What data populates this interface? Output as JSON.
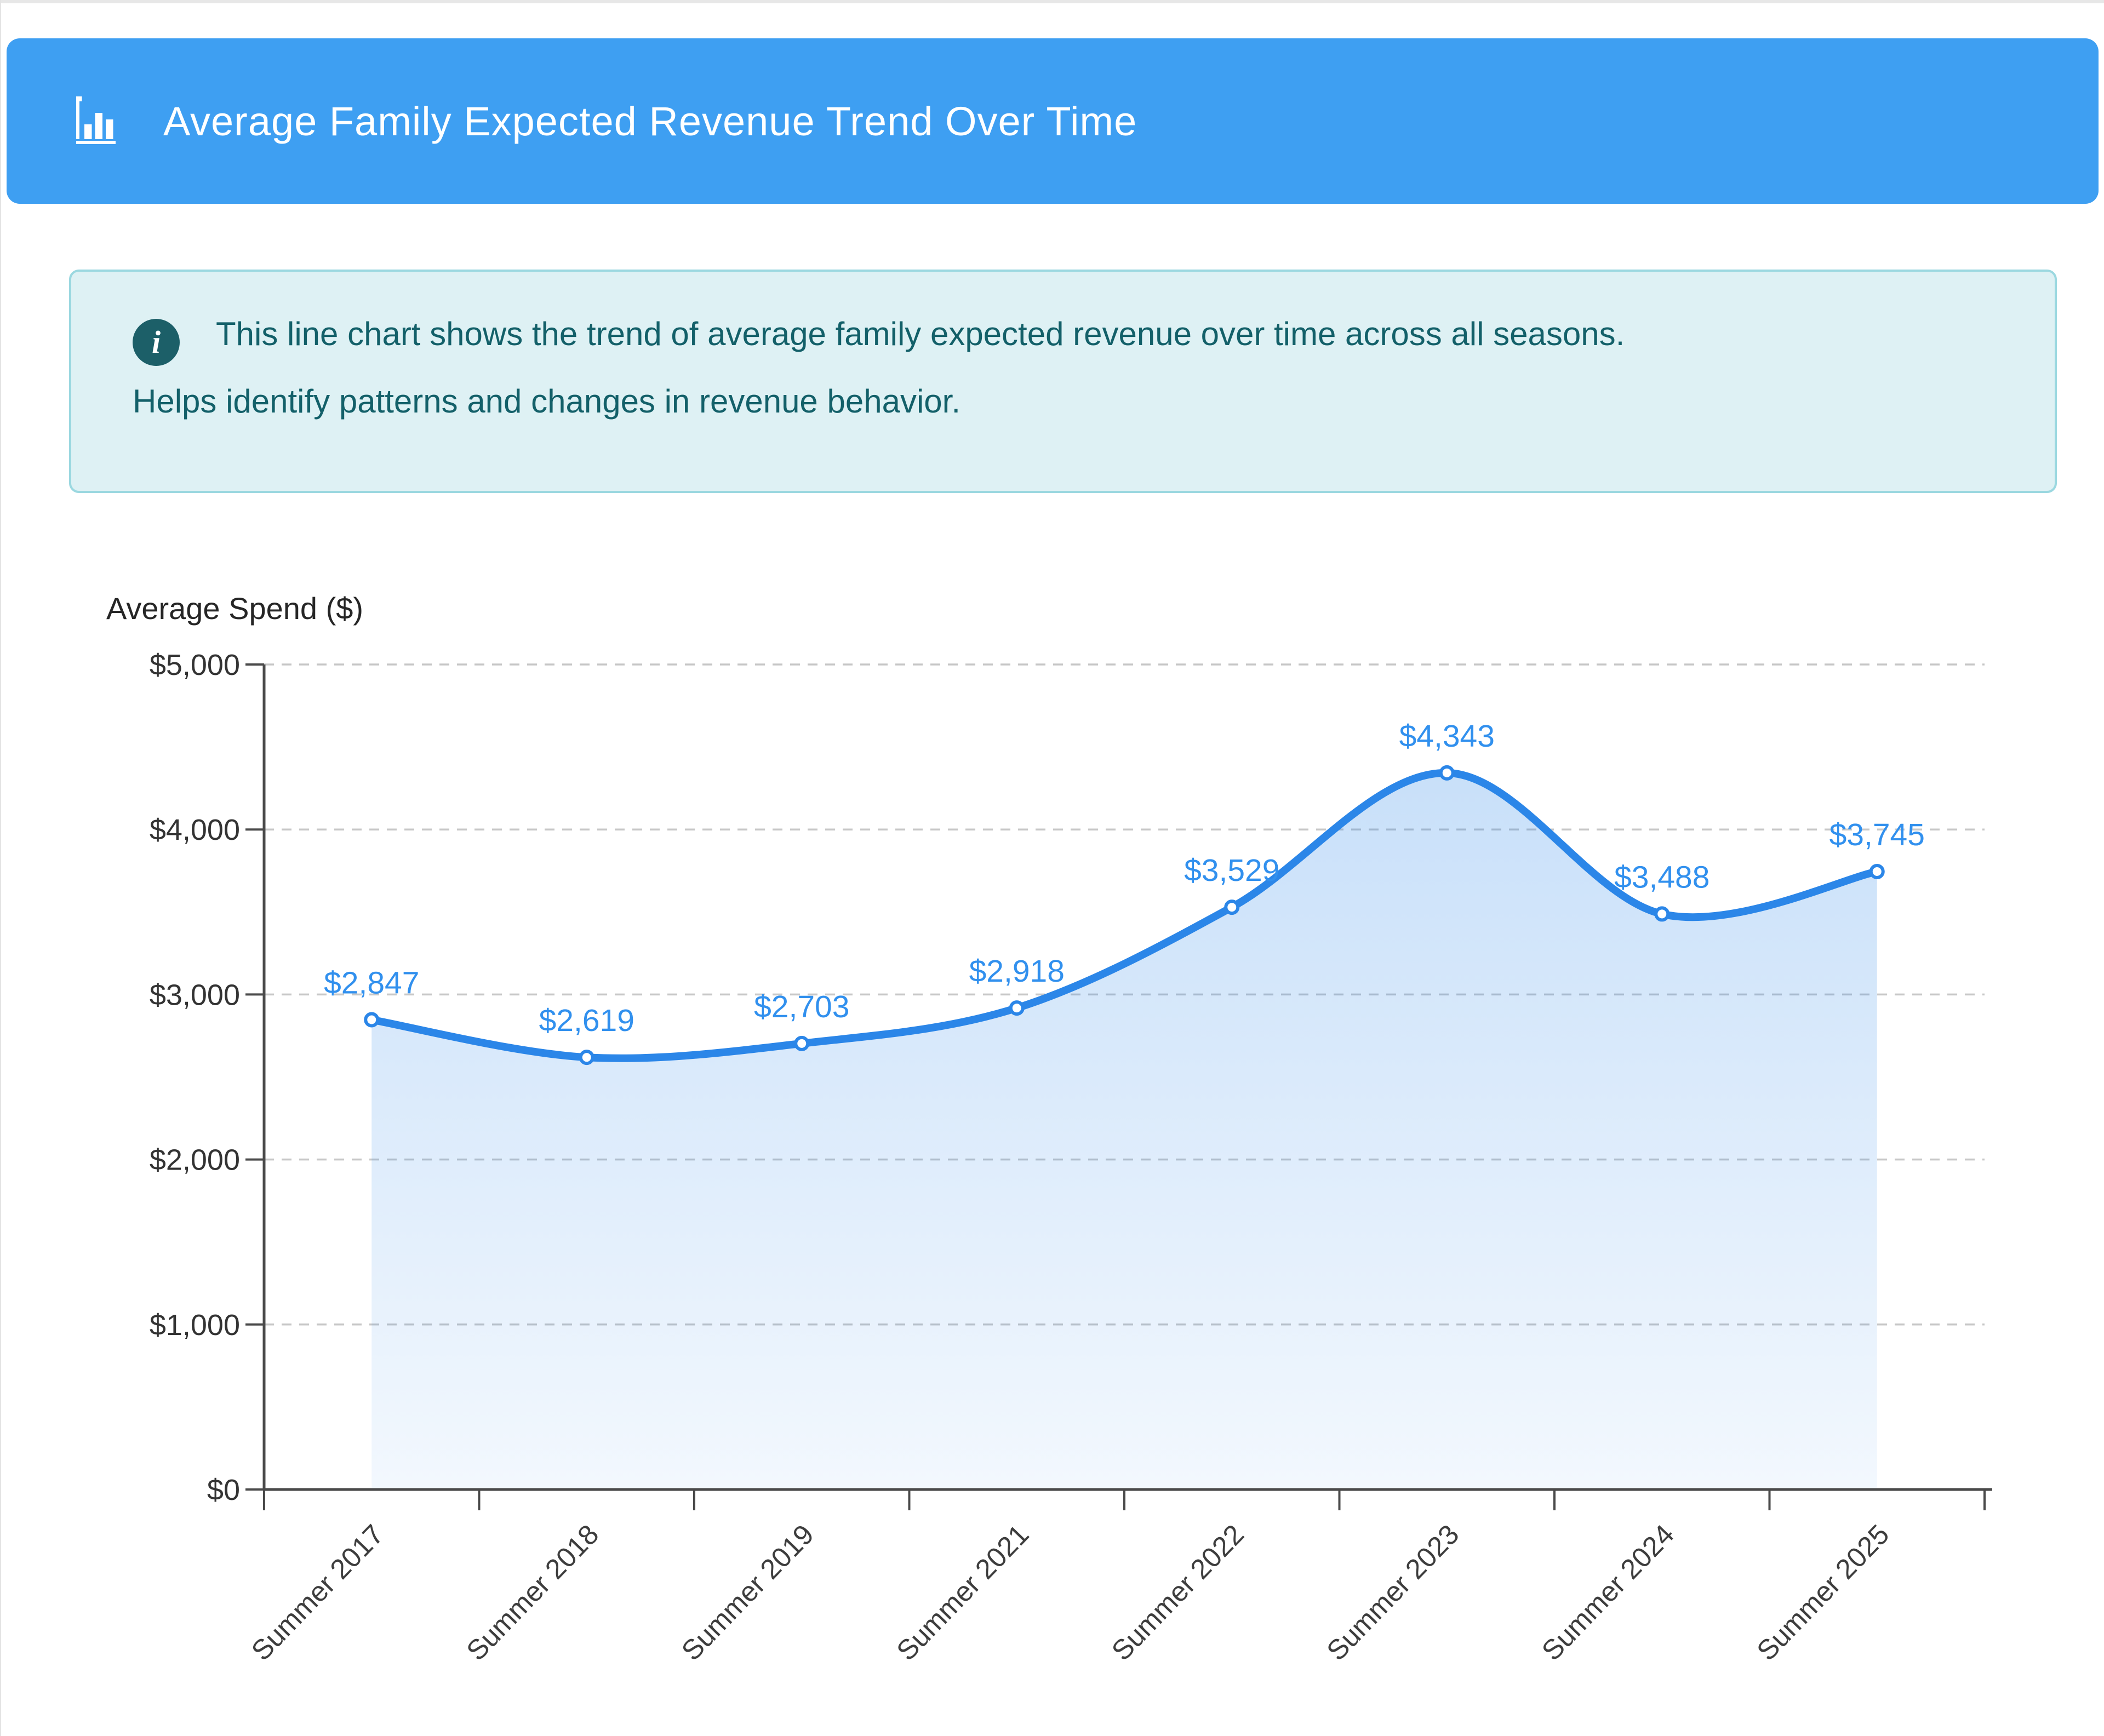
{
  "header": {
    "title": "Average Family Expected Revenue Trend Over Time",
    "icon": "bar-chart-icon",
    "bg_color": "#3e9ff2"
  },
  "info": {
    "icon": "info-icon",
    "icon_glyph": "i",
    "line1": "This line chart shows the trend of average family expected revenue over time across all seasons.",
    "line2": "Helps identify patterns and changes in revenue behavior.",
    "bg_color": "#def1f4",
    "border_color": "#9bd8e0",
    "text_color": "#136069"
  },
  "chart_data": {
    "type": "line",
    "title": "Average Family Expected Revenue Trend Over Time",
    "ylabel": "Average Spend ($)",
    "xlabel": "",
    "categories": [
      "Summer 2017",
      "Summer 2018",
      "Summer 2019",
      "Summer 2021",
      "Summer 2022",
      "Summer 2023",
      "Summer 2024",
      "Summer 2025"
    ],
    "values": [
      2847,
      2619,
      2703,
      2918,
      3529,
      4343,
      3488,
      3745
    ],
    "value_labels": [
      "$2,847",
      "$2,619",
      "$2,703",
      "$2,918",
      "$3,529",
      "$4,343",
      "$3,488",
      "$3,745"
    ],
    "ytick_labels": [
      "$0",
      "$1,000",
      "$2,000",
      "$3,000",
      "$4,000",
      "$5,000"
    ],
    "ylim": [
      0,
      5000
    ],
    "grid": true,
    "grid_style": "dashed",
    "legend_position": "none",
    "smooth": true,
    "line_color": "#2b86e8",
    "marker_fill": "#ffffff",
    "area_top_color": "rgba(43,134,232,0.26)",
    "area_bottom_color": "rgba(43,134,232,0.06)"
  }
}
